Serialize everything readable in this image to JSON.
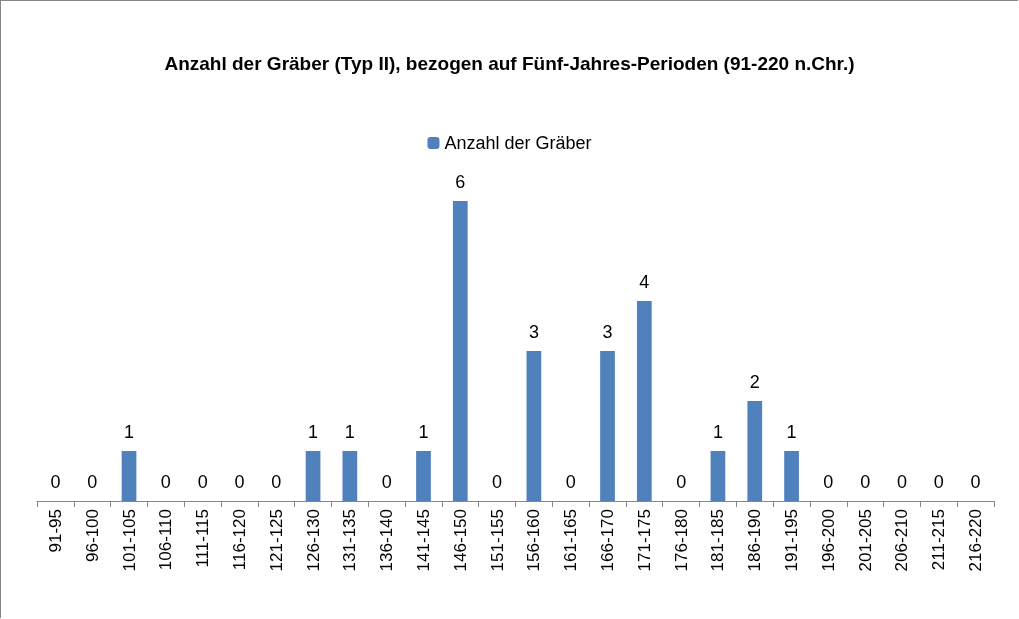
{
  "chart_data": {
    "type": "bar",
    "title": "Anzahl der Gräber (Typ II), bezogen auf Fünf-Jahres-Perioden (91-220 n.Chr.)",
    "categories": [
      "91-95",
      "96-100",
      "101-105",
      "106-110",
      "111-115",
      "116-120",
      "121-125",
      "126-130",
      "131-135",
      "136-140",
      "141-145",
      "146-150",
      "151-155",
      "156-160",
      "161-165",
      "166-170",
      "171-175",
      "176-180",
      "181-185",
      "186-190",
      "191-195",
      "196-200",
      "201-205",
      "206-210",
      "211-215",
      "216-220"
    ],
    "series": [
      {
        "name": "Anzahl der Gräber",
        "color": "#4f81bd",
        "values": [
          0,
          0,
          1,
          0,
          0,
          0,
          0,
          1,
          1,
          0,
          1,
          6,
          0,
          3,
          0,
          3,
          4,
          0,
          1,
          2,
          1,
          0,
          0,
          0,
          0,
          0
        ]
      }
    ],
    "data_labels": true,
    "legend": "top",
    "grid": false
  }
}
